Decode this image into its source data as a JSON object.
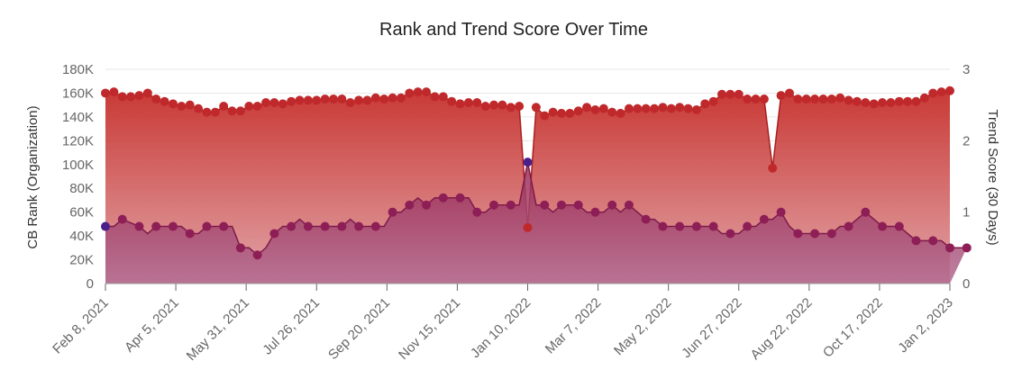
{
  "chart_data": {
    "type": "area",
    "title": "Rank and Trend Score Over Time",
    "y_left_label": "CB Rank (Organization)",
    "y_right_label": "Trend Score (30 Days)",
    "y_left_range": [
      0,
      180000
    ],
    "y_right_range": [
      0,
      3
    ],
    "y_left_ticks": [
      "0",
      "20K",
      "40K",
      "60K",
      "80K",
      "100K",
      "120K",
      "140K",
      "160K",
      "180K"
    ],
    "y_right_ticks": [
      "0",
      "1",
      "2",
      "3"
    ],
    "x_ticks": [
      "Feb 8, 2021",
      "Apr 5, 2021",
      "May 31, 2021",
      "Jul 26, 2021",
      "Sep 20, 2021",
      "Nov 15, 2021",
      "Jan 10, 2022",
      "Mar 7, 2022",
      "May 2, 2022",
      "Jun 27, 2022",
      "Aug 22, 2022",
      "Oct 17, 2022",
      "Jan 2, 2023"
    ],
    "grid": true,
    "series": [
      {
        "name": "CB Rank (Organization)",
        "axis": "left",
        "color": "#c0292b",
        "values": [
          160000,
          161000,
          157000,
          157000,
          158000,
          160000,
          155000,
          153000,
          151000,
          149000,
          150000,
          147000,
          144000,
          144000,
          149000,
          145000,
          145000,
          149000,
          149000,
          152000,
          152000,
          151000,
          153000,
          154000,
          154000,
          154000,
          155000,
          155000,
          155000,
          152000,
          154000,
          154000,
          156000,
          155000,
          156000,
          156000,
          160000,
          161000,
          161000,
          157000,
          157000,
          153000,
          151000,
          152000,
          152000,
          149000,
          150000,
          150000,
          148000,
          149000,
          47000,
          148000,
          141000,
          144000,
          143000,
          143000,
          145000,
          148000,
          146000,
          147000,
          144000,
          143000,
          147000,
          147000,
          147000,
          147000,
          148000,
          147000,
          148000,
          147000,
          146000,
          151000,
          153000,
          159000,
          159000,
          159000,
          155000,
          155000,
          155000,
          97000,
          158000,
          160000,
          155000,
          155000,
          155000,
          155000,
          155000,
          156000,
          154000,
          153000,
          152000,
          151000,
          152000,
          152000,
          153000,
          153000,
          153000,
          156000,
          160000,
          161000,
          162000
        ]
      },
      {
        "name": "Trend Score (30 Days)",
        "axis": "right",
        "color": "#8e1e56",
        "values": [
          0.8,
          0.8,
          0.9,
          0.85,
          0.8,
          0.7,
          0.8,
          0.8,
          0.8,
          0.8,
          0.7,
          0.7,
          0.8,
          0.8,
          0.8,
          0.8,
          0.5,
          0.5,
          0.4,
          0.5,
          0.7,
          0.8,
          0.8,
          0.9,
          0.8,
          0.8,
          0.8,
          0.8,
          0.8,
          0.9,
          0.8,
          0.8,
          0.8,
          0.8,
          1.0,
          1.0,
          1.1,
          1.2,
          1.1,
          1.2,
          1.2,
          1.2,
          1.2,
          1.2,
          1.0,
          1.0,
          1.1,
          1.1,
          1.1,
          1.1,
          1.7,
          1.1,
          1.1,
          1.0,
          1.1,
          1.1,
          1.1,
          1.0,
          1.0,
          1.0,
          1.1,
          1.0,
          1.1,
          1.0,
          0.9,
          0.9,
          0.8,
          0.8,
          0.8,
          0.8,
          0.8,
          0.8,
          0.8,
          0.7,
          0.7,
          0.7,
          0.8,
          0.8,
          0.9,
          0.9,
          1.0,
          0.8,
          0.7,
          0.7,
          0.7,
          0.7,
          0.7,
          0.8,
          0.8,
          0.9,
          1.0,
          0.9,
          0.8,
          0.8,
          0.8,
          0.7,
          0.6,
          0.6,
          0.6,
          0.6,
          0.5,
          0.5,
          0.5
        ]
      }
    ]
  }
}
